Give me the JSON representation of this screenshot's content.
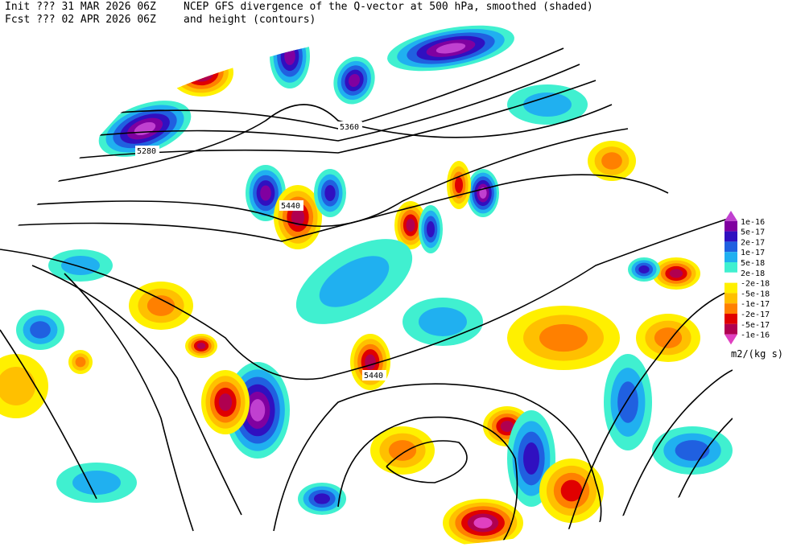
{
  "header": {
    "init": "Init  ??? 31 MAR 2026 06Z",
    "fcst": "Fcst ??? 02 APR 2026 06Z",
    "title": "NCEP GFS divergence of the Q-vector at 500 hPa, smoothed (shaded)",
    "subtitle": "and height (contours)"
  },
  "contour_labels": [
    "5280",
    "5360",
    "5440",
    "5440"
  ],
  "colorbar": {
    "labels": [
      "1e-16",
      "5e-17",
      "2e-17",
      "1e-17",
      "5e-18",
      "2e-18",
      "-2e-18",
      "-5e-18",
      "-1e-17",
      "-2e-17",
      "-5e-17",
      "-1e-16"
    ],
    "colors": [
      "#c040d0",
      "#8000a0",
      "#3010c0",
      "#2060e0",
      "#20b0f0",
      "#40f0d0",
      "#ffffff",
      "#fff000",
      "#ffc000",
      "#ff8000",
      "#e00000",
      "#b00050",
      "#e040c0"
    ],
    "unit": "m2/(kg s)"
  }
}
